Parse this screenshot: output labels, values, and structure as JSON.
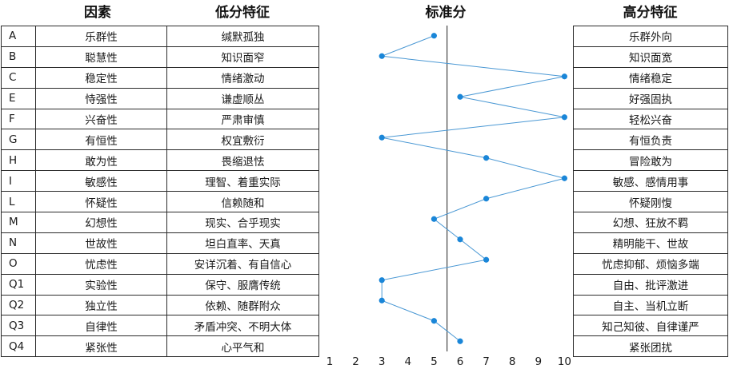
{
  "headers": {
    "factor": "因素",
    "low": "低分特征",
    "score": "标准分",
    "high": "高分特征"
  },
  "rows": [
    {
      "code": "A",
      "name": "乐群性",
      "low": "缄默孤独",
      "high": "乐群外向"
    },
    {
      "code": "B",
      "name": "聪慧性",
      "low": "知识面窄",
      "high": "知识面宽"
    },
    {
      "code": "C",
      "name": "稳定性",
      "low": "情绪激动",
      "high": "情绪稳定"
    },
    {
      "code": "E",
      "name": "恃强性",
      "low": "谦虚顺丛",
      "high": "好强固执"
    },
    {
      "code": "F",
      "name": "兴奋性",
      "low": "严肃审慎",
      "high": "轻松兴奋"
    },
    {
      "code": "G",
      "name": "有恒性",
      "low": "权宜敷衍",
      "high": "有恒负责"
    },
    {
      "code": "H",
      "name": "敢为性",
      "low": "畏缩退怯",
      "high": "冒险敢为"
    },
    {
      "code": "I",
      "name": "敏感性",
      "low": "理智、着重实际",
      "high": "敏感、感情用事"
    },
    {
      "code": "L",
      "name": "怀疑性",
      "low": "信赖随和",
      "high": "怀疑刚愎"
    },
    {
      "code": "M",
      "name": "幻想性",
      "low": "现实、合乎现实",
      "high": "幻想、狂放不羁"
    },
    {
      "code": "N",
      "name": "世故性",
      "low": "坦白直率、天真",
      "high": "精明能干、世故"
    },
    {
      "code": "O",
      "name": "忧虑性",
      "low": "安详沉着、有自信心",
      "high": "忧虑抑郁、烦恼多端"
    },
    {
      "code": "Q1",
      "name": "实验性",
      "low": "保守、服膺传统",
      "high": "自由、批评激进"
    },
    {
      "code": "Q2",
      "name": "独立性",
      "low": "依赖、随群附众",
      "high": "自主、当机立断"
    },
    {
      "code": "Q3",
      "name": "自律性",
      "low": "矛盾冲突、不明大体",
      "high": "知己知彼、自律谨严"
    },
    {
      "code": "Q4",
      "name": "紧张性",
      "low": "心平气和",
      "high": "紧张团扰"
    }
  ],
  "chart_data": {
    "type": "line",
    "orientation": "horizontal-profile",
    "title": "标准分",
    "categories": [
      "A",
      "B",
      "C",
      "E",
      "F",
      "G",
      "H",
      "I",
      "L",
      "M",
      "N",
      "O",
      "Q1",
      "Q2",
      "Q3",
      "Q4"
    ],
    "values": [
      5,
      3,
      10,
      6,
      10,
      3,
      7,
      10,
      7,
      5,
      6,
      7,
      3,
      3,
      5,
      6
    ],
    "x_ticks": [
      1,
      2,
      3,
      4,
      5,
      6,
      7,
      8,
      9,
      10
    ],
    "x_range": [
      1,
      10
    ],
    "reference_line": 5.5,
    "grid": false,
    "line_color": "#4a98d4",
    "marker_color": "#1a86d8"
  }
}
